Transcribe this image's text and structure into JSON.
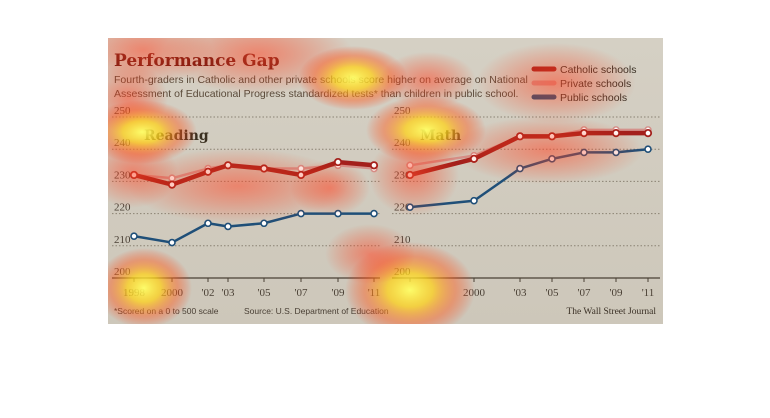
{
  "title": "Performance Gap",
  "subtitle_line1": "Fourth-graders in Catholic and other private schools score higher on average on National",
  "subtitle_line2": "Assessment of Educational Progress standardized tests* than children in public school.",
  "footnote": "*Scored on a 0 to 500 scale",
  "source": "Source: U.S. Department of Education",
  "credit": "The Wall Street Journal",
  "colors": {
    "catholic": "#a3201c",
    "private": "#d4928c",
    "public": "#1f4f78"
  },
  "chart_data": [
    {
      "type": "line",
      "title": "Reading",
      "x": [
        "1998",
        "2000",
        "2002",
        "2003",
        "2005",
        "2007",
        "2009",
        "2011"
      ],
      "x_tick_labels": [
        "1998",
        "2000",
        "'02",
        "'03",
        "'05",
        "'07",
        "'09",
        "'11"
      ],
      "ylim": [
        200,
        250
      ],
      "y_ticks": [
        "200",
        "210",
        "220",
        "230",
        "240",
        "250"
      ],
      "grid": true,
      "legend_position": "top-right",
      "series": [
        {
          "name": "Catholic schools",
          "values": [
            232,
            229,
            233,
            235,
            234,
            232,
            236,
            235
          ]
        },
        {
          "name": "Private schools",
          "values": [
            232,
            231,
            234,
            235,
            234,
            234,
            235,
            234
          ]
        },
        {
          "name": "Public schools",
          "values": [
            213,
            211,
            217,
            216,
            217,
            220,
            220,
            220
          ]
        }
      ]
    },
    {
      "type": "line",
      "title": "Math",
      "x": [
        "1996",
        "2000",
        "2003",
        "2005",
        "2007",
        "2009",
        "2011"
      ],
      "x_tick_labels": [
        "",
        "2000",
        "'03",
        "'05",
        "'07",
        "'09",
        "'11"
      ],
      "ylim": [
        200,
        250
      ],
      "y_ticks": [
        "200",
        "210",
        "220",
        "230",
        "240",
        "250"
      ],
      "grid": true,
      "legend_position": "top-right",
      "series": [
        {
          "name": "Catholic schools",
          "values": [
            232,
            237,
            244,
            244,
            245,
            245,
            245
          ]
        },
        {
          "name": "Private schools",
          "values": [
            235,
            238,
            244,
            244,
            246,
            246,
            246
          ]
        },
        {
          "name": "Public schools",
          "values": [
            222,
            224,
            234,
            237,
            239,
            239,
            240
          ]
        }
      ]
    }
  ]
}
